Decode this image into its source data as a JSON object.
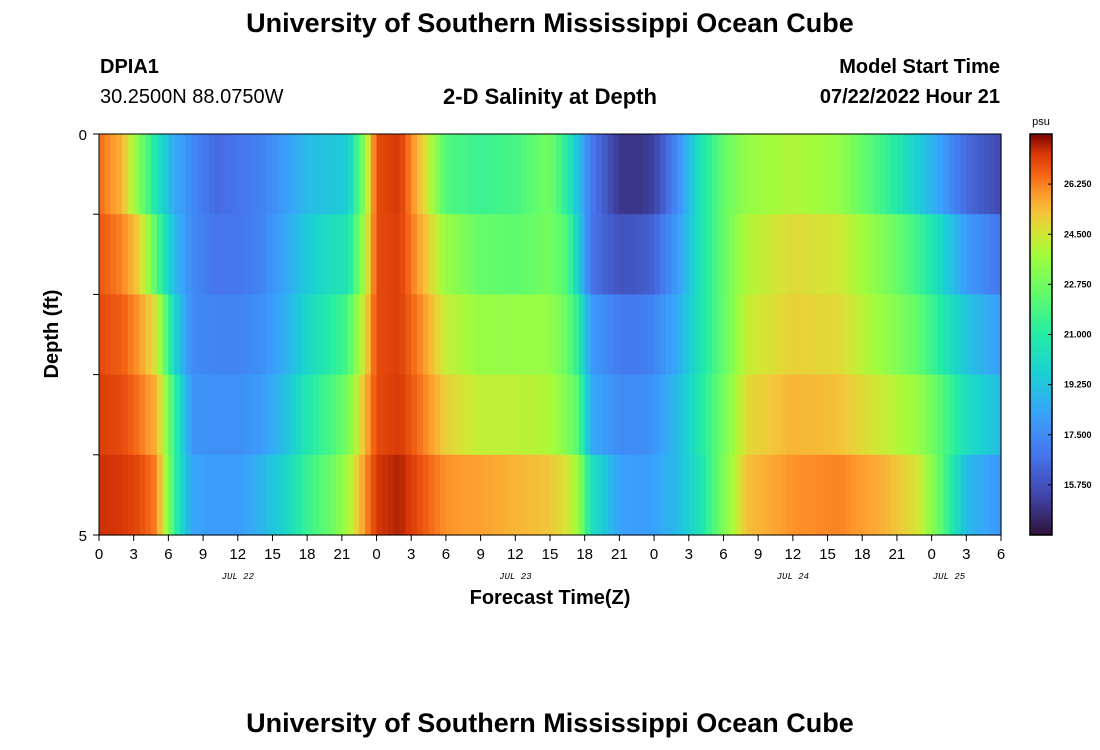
{
  "header": {
    "title": "University of Southern Mississippi Ocean Cube",
    "station_id": "DPIA1",
    "coordinates": "30.2500N  88.0750W",
    "subtitle": "2-D Salinity at Depth",
    "model_start_label": "Model Start Time",
    "model_start_value": "07/22/2022 Hour 21"
  },
  "footer": {
    "title": "University of Southern Mississippi Ocean Cube"
  },
  "chart_data": {
    "type": "heatmap",
    "title": "2-D Salinity at Depth",
    "xlabel": "Forecast Time(Z)",
    "ylabel": "Depth (ft)",
    "x_tick_labels": [
      "0",
      "3",
      "6",
      "9",
      "12",
      "15",
      "18",
      "21",
      "0",
      "3",
      "6",
      "9",
      "12",
      "15",
      "18",
      "21",
      "0",
      "3",
      "6",
      "9",
      "12",
      "15",
      "18",
      "21",
      "0",
      "3",
      "6"
    ],
    "day_labels": [
      "JUL 22",
      "JUL 23",
      "JUL 24",
      "JUL 25"
    ],
    "y_tick_labels": [
      "0",
      "5"
    ],
    "ylim": [
      0,
      5
    ],
    "colorbar": {
      "unit": "psu",
      "range": [
        14.0,
        28.0
      ],
      "ticks": [
        "26.250",
        "24.500",
        "22.750",
        "21.000",
        "19.250",
        "17.500",
        "15.750"
      ]
    },
    "time_range_hours": [
      0,
      78
    ],
    "depth_rows": [
      "0-1 ft",
      "1-2 ft",
      "2-3 ft",
      "3-4 ft",
      "4-5 ft"
    ],
    "keyframes": [
      {
        "hour": 0,
        "values": [
          26.5,
          26.8,
          27.0,
          27.2,
          27.4
        ]
      },
      {
        "hour": 2,
        "values": [
          25.5,
          26.2,
          26.7,
          27.0,
          27.3
        ]
      },
      {
        "hour": 3.5,
        "values": [
          23.0,
          25.0,
          25.9,
          26.4,
          27.0
        ]
      },
      {
        "hour": 5,
        "values": [
          20.5,
          22.0,
          24.5,
          25.5,
          26.2
        ]
      },
      {
        "hour": 6.5,
        "values": [
          18.5,
          19.0,
          20.0,
          21.5,
          21.5
        ]
      },
      {
        "hour": 8,
        "values": [
          17.5,
          17.5,
          17.5,
          17.8,
          18.3
        ]
      },
      {
        "hour": 10,
        "values": [
          16.5,
          16.8,
          17.3,
          17.6,
          18.0
        ]
      },
      {
        "hour": 12,
        "values": [
          16.8,
          16.8,
          17.3,
          17.6,
          18.0
        ]
      },
      {
        "hour": 14,
        "values": [
          17.2,
          17.3,
          17.6,
          18.0,
          18.8
        ]
      },
      {
        "hour": 16,
        "values": [
          18.0,
          18.3,
          18.5,
          19.0,
          19.8
        ]
      },
      {
        "hour": 18,
        "values": [
          19.0,
          19.5,
          20.0,
          20.8,
          21.5
        ]
      },
      {
        "hour": 20,
        "values": [
          19.3,
          20.3,
          21.0,
          21.8,
          22.5
        ]
      },
      {
        "hour": 21.5,
        "values": [
          19.5,
          20.5,
          21.8,
          22.8,
          23.8
        ]
      },
      {
        "hour": 23,
        "values": [
          23.5,
          24.0,
          24.8,
          25.5,
          26.0
        ]
      },
      {
        "hour": 24,
        "values": [
          27.0,
          27.0,
          27.0,
          27.0,
          27.3
        ]
      },
      {
        "hour": 26,
        "values": [
          27.3,
          27.2,
          27.2,
          27.3,
          27.6
        ]
      },
      {
        "hour": 28,
        "values": [
          25.0,
          25.5,
          26.0,
          26.3,
          26.8
        ]
      },
      {
        "hour": 30,
        "values": [
          22.0,
          23.5,
          24.3,
          25.0,
          26.0
        ]
      },
      {
        "hour": 33,
        "values": [
          21.5,
          22.5,
          23.5,
          24.2,
          25.8
        ]
      },
      {
        "hour": 36,
        "values": [
          21.8,
          22.3,
          23.5,
          24.2,
          25.5
        ]
      },
      {
        "hour": 39,
        "values": [
          22.8,
          22.8,
          23.5,
          24.0,
          25.2
        ]
      },
      {
        "hour": 40.5,
        "values": [
          21.0,
          22.0,
          22.5,
          23.0,
          24.5
        ]
      },
      {
        "hour": 41.5,
        "values": [
          19.0,
          19.5,
          21.0,
          22.0,
          23.5
        ]
      },
      {
        "hour": 42.5,
        "values": [
          17.0,
          16.8,
          18.0,
          18.5,
          20.5
        ]
      },
      {
        "hour": 45,
        "values": [
          15.0,
          15.8,
          17.0,
          17.5,
          18.2
        ]
      },
      {
        "hour": 47,
        "values": [
          15.0,
          16.0,
          17.0,
          17.5,
          18.0
        ]
      },
      {
        "hour": 48,
        "values": [
          15.3,
          16.3,
          17.3,
          17.8,
          18.2
        ]
      },
      {
        "hour": 50,
        "values": [
          17.5,
          18.0,
          18.5,
          19.0,
          19.0
        ]
      },
      {
        "hour": 52,
        "values": [
          20.5,
          20.5,
          20.5,
          20.8,
          20.5
        ]
      },
      {
        "hour": 54,
        "values": [
          22.5,
          22.5,
          22.5,
          22.8,
          23.0
        ]
      },
      {
        "hour": 56,
        "values": [
          23.5,
          24.0,
          24.3,
          24.8,
          25.3
        ]
      },
      {
        "hour": 60,
        "values": [
          24.0,
          24.8,
          25.0,
          25.5,
          26.0
        ]
      },
      {
        "hour": 64,
        "values": [
          23.5,
          24.5,
          24.8,
          25.3,
          26.2
        ]
      },
      {
        "hour": 68,
        "values": [
          21.5,
          23.0,
          23.5,
          24.3,
          25.5
        ]
      },
      {
        "hour": 71,
        "values": [
          19.5,
          21.5,
          22.3,
          23.5,
          24.5
        ]
      },
      {
        "hour": 73,
        "values": [
          18.0,
          19.8,
          20.8,
          22.0,
          22.0
        ]
      },
      {
        "hour": 75,
        "values": [
          16.5,
          18.0,
          19.3,
          20.3,
          19.0
        ]
      },
      {
        "hour": 78,
        "values": [
          15.5,
          16.8,
          18.0,
          19.0,
          17.8
        ]
      }
    ]
  }
}
